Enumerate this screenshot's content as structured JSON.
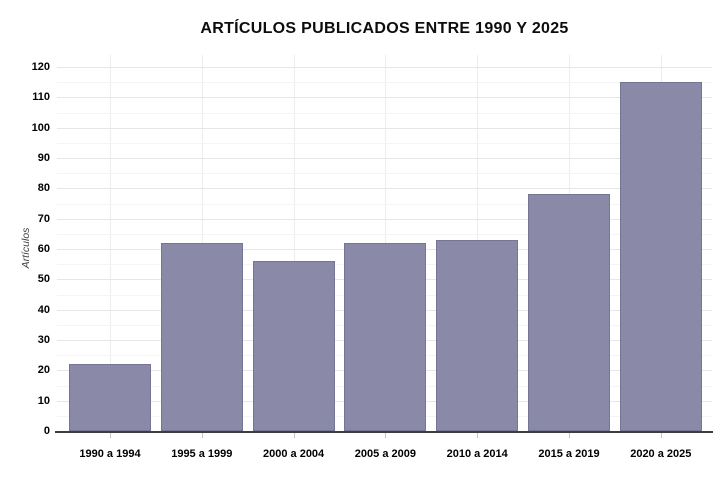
{
  "chart_data": {
    "type": "bar",
    "title": "ARTÍCULOS PUBLICADOS ENTRE 1990 Y 2025",
    "xlabel": "",
    "ylabel": "Artículos",
    "categories": [
      "1990 a 1994",
      "1995 a 1999",
      "2000 a 2004",
      "2005 a 2009",
      "2010 a 2014",
      "2015 a 2019",
      "2020 a 2025"
    ],
    "values": [
      22,
      62,
      56,
      62,
      63,
      78,
      115
    ],
    "ylim": [
      0,
      120
    ],
    "yticks": [
      0,
      10,
      20,
      30,
      40,
      50,
      60,
      70,
      80,
      90,
      100,
      110,
      120
    ],
    "ytick_minor_step": 5,
    "grid": true,
    "legend": false,
    "bar_color": "#8A8AA8",
    "bar_border_color": "#6E6E8C",
    "axis_line_color": "#3d3d3d",
    "major_grid_color": "#e6e6e6",
    "minor_grid_color": "#f4f4f4"
  }
}
